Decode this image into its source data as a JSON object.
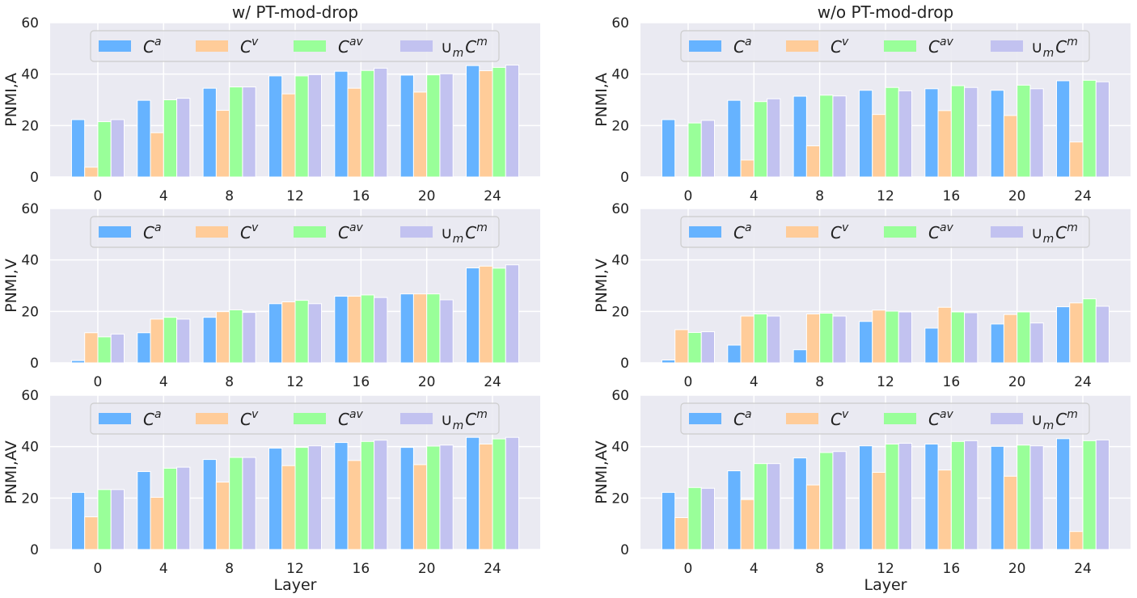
{
  "colors": {
    "background": "#eaeaf2",
    "grid": "#ffffff",
    "series": [
      "#66b3ff",
      "#ffcc99",
      "#99ff99",
      "#c2c2f0"
    ]
  },
  "legend": {
    "placement": "upper-center",
    "items": [
      {
        "base": "C",
        "sup": "a",
        "prefix": "",
        "sub": ""
      },
      {
        "base": "C",
        "sup": "v",
        "prefix": "",
        "sub": ""
      },
      {
        "base": "C",
        "sup": "av",
        "prefix": "",
        "sub": ""
      },
      {
        "base": "C",
        "sup": "m",
        "prefix": "∪",
        "sub": "m"
      }
    ]
  },
  "chart_data": [
    {
      "type": "bar",
      "panel": "row1-left",
      "title": "w/ PT-mod-drop",
      "ylabel": "PNMI,A",
      "xlabel": "",
      "ylim": [
        0,
        60
      ],
      "yticks": [
        "0",
        "20",
        "40",
        "60"
      ],
      "categories": [
        "0",
        "4",
        "8",
        "12",
        "16",
        "20",
        "24"
      ],
      "series": [
        {
          "name": "C^a",
          "values": [
            22.3,
            29.8,
            34.5,
            39.3,
            41.1,
            39.6,
            43.3
          ]
        },
        {
          "name": "C^v",
          "values": [
            3.8,
            17.2,
            25.9,
            32.3,
            34.5,
            33.0,
            41.3
          ]
        },
        {
          "name": "C^av",
          "values": [
            21.5,
            30.0,
            35.0,
            39.3,
            41.4,
            39.7,
            42.6
          ]
        },
        {
          "name": "∪_m C^m",
          "values": [
            22.3,
            30.6,
            35.0,
            39.8,
            42.3,
            40.1,
            43.5
          ]
        }
      ]
    },
    {
      "type": "bar",
      "panel": "row1-right",
      "title": "w/o PT-mod-drop",
      "ylabel": "PNMI,A",
      "xlabel": "",
      "ylim": [
        0,
        60
      ],
      "yticks": [
        "0",
        "20",
        "40",
        "60"
      ],
      "categories": [
        "0",
        "4",
        "8",
        "12",
        "16",
        "20",
        "24"
      ],
      "series": [
        {
          "name": "C^a",
          "values": [
            22.3,
            29.8,
            31.4,
            33.7,
            34.3,
            33.7,
            37.4
          ]
        },
        {
          "name": "C^v",
          "values": [
            0.0,
            6.6,
            12.1,
            24.3,
            25.8,
            23.9,
            13.6
          ]
        },
        {
          "name": "C^av",
          "values": [
            21.0,
            29.3,
            31.8,
            34.8,
            35.5,
            35.7,
            37.6
          ]
        },
        {
          "name": "∪_m C^m",
          "values": [
            22.0,
            30.4,
            31.5,
            33.5,
            34.8,
            34.3,
            37.0
          ]
        }
      ]
    },
    {
      "type": "bar",
      "panel": "row2-left",
      "title": "",
      "ylabel": "PNMI,V",
      "xlabel": "",
      "ylim": [
        0,
        60
      ],
      "yticks": [
        "0",
        "20",
        "40",
        "60"
      ],
      "categories": [
        "0",
        "4",
        "8",
        "12",
        "16",
        "20",
        "24"
      ],
      "series": [
        {
          "name": "C^a",
          "values": [
            0.9,
            11.7,
            17.7,
            23.0,
            25.9,
            26.8,
            36.9
          ]
        },
        {
          "name": "C^v",
          "values": [
            11.7,
            17.0,
            19.9,
            23.7,
            25.9,
            26.8,
            37.6
          ]
        },
        {
          "name": "C^av",
          "values": [
            10.1,
            17.7,
            20.6,
            24.3,
            26.4,
            26.8,
            36.8
          ]
        },
        {
          "name": "∪_m C^m",
          "values": [
            11.2,
            17.0,
            19.6,
            23.0,
            25.4,
            24.5,
            38.1
          ]
        }
      ]
    },
    {
      "type": "bar",
      "panel": "row2-right",
      "title": "",
      "ylabel": "PNMI,V",
      "xlabel": "",
      "ylim": [
        0,
        60
      ],
      "yticks": [
        "0",
        "20",
        "40",
        "60"
      ],
      "categories": [
        "0",
        "4",
        "8",
        "12",
        "16",
        "20",
        "24"
      ],
      "series": [
        {
          "name": "C^a",
          "values": [
            1.1,
            6.9,
            5.1,
            16.1,
            13.5,
            15.1,
            21.8
          ]
        },
        {
          "name": "C^v",
          "values": [
            12.9,
            18.2,
            19.0,
            20.5,
            21.6,
            18.8,
            23.3
          ]
        },
        {
          "name": "C^av",
          "values": [
            11.8,
            19.0,
            19.3,
            20.1,
            19.8,
            19.8,
            24.9
          ]
        },
        {
          "name": "∪_m C^m",
          "values": [
            12.1,
            18.2,
            18.2,
            19.8,
            19.5,
            15.5,
            22.0
          ]
        }
      ]
    },
    {
      "type": "bar",
      "panel": "row3-left",
      "title": "",
      "ylabel": "PNMI,AV",
      "xlabel": "Layer",
      "ylim": [
        0,
        60
      ],
      "yticks": [
        "0",
        "20",
        "40",
        "60"
      ],
      "categories": [
        "0",
        "4",
        "8",
        "12",
        "16",
        "20",
        "24"
      ],
      "series": [
        {
          "name": "C^a",
          "values": [
            22.2,
            30.3,
            35.0,
            39.4,
            41.6,
            39.7,
            43.6
          ]
        },
        {
          "name": "C^v",
          "values": [
            12.7,
            20.3,
            26.2,
            32.6,
            34.6,
            33.0,
            41.0
          ]
        },
        {
          "name": "C^av",
          "values": [
            23.3,
            31.6,
            35.8,
            39.7,
            42.0,
            40.2,
            43.0
          ]
        },
        {
          "name": "∪_m C^m",
          "values": [
            23.3,
            32.0,
            35.8,
            40.3,
            42.5,
            40.6,
            43.6
          ]
        }
      ]
    },
    {
      "type": "bar",
      "panel": "row3-right",
      "title": "",
      "ylabel": "PNMI,AV",
      "xlabel": "Layer",
      "ylim": [
        0,
        60
      ],
      "yticks": [
        "0",
        "20",
        "40",
        "60"
      ],
      "categories": [
        "0",
        "4",
        "8",
        "12",
        "16",
        "20",
        "24"
      ],
      "series": [
        {
          "name": "C^a",
          "values": [
            22.2,
            30.6,
            35.6,
            40.3,
            41.0,
            40.1,
            43.1
          ]
        },
        {
          "name": "C^v",
          "values": [
            12.4,
            19.4,
            25.1,
            30.0,
            30.9,
            28.5,
            7.0
          ]
        },
        {
          "name": "C^av",
          "values": [
            24.1,
            33.4,
            37.7,
            41.0,
            42.0,
            40.6,
            42.3
          ]
        },
        {
          "name": "∪_m C^m",
          "values": [
            23.8,
            33.4,
            38.1,
            41.3,
            42.3,
            40.3,
            42.6
          ]
        }
      ]
    }
  ]
}
